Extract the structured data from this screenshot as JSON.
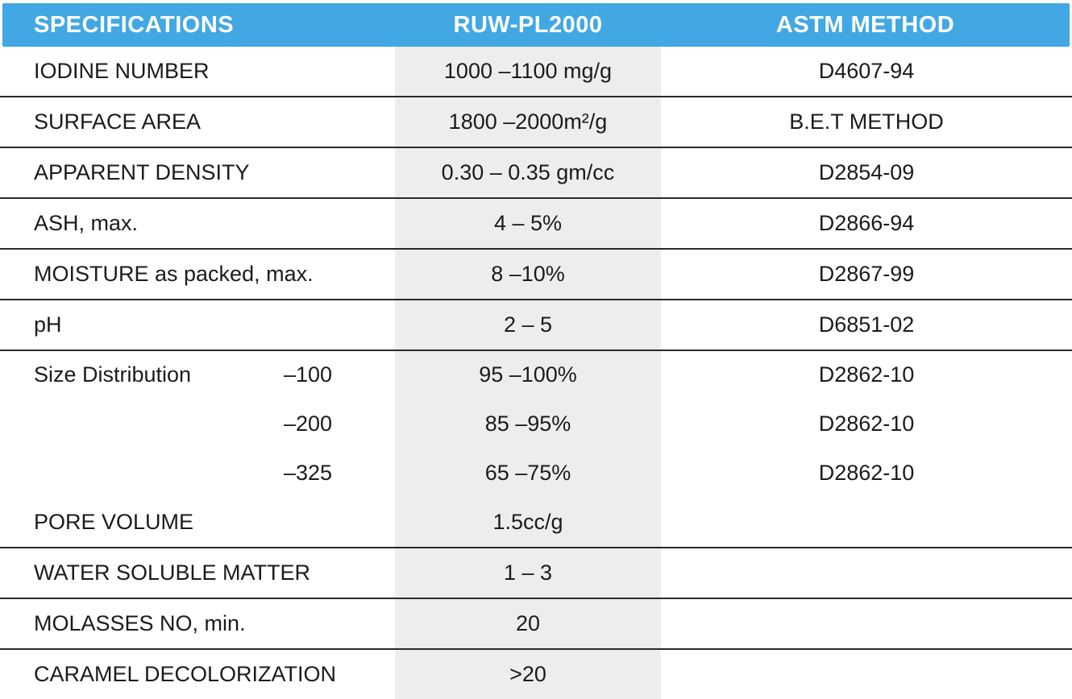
{
  "table_title": "Activated carbon product specification table",
  "header": {
    "col_spec": "SPECIFICATIONS",
    "col_value": "RUW-PL2000",
    "col_method": "ASTM METHOD"
  },
  "rows": [
    {
      "spec": "IODINE NUMBER",
      "size": "",
      "value": "1000 –1100 mg/g",
      "method": "D4607-94"
    },
    {
      "spec": "SURFACE AREA",
      "size": "",
      "value": "1800 –2000m²/g",
      "method": "B.E.T METHOD"
    },
    {
      "spec": "APPARENT DENSITY",
      "size": "",
      "value": "0.30 – 0.35 gm/cc",
      "method": "D2854-09"
    },
    {
      "spec": "ASH, max.",
      "size": "",
      "value": "4 – 5%",
      "method": "D2866-94"
    },
    {
      "spec": "MOISTURE as packed, max.",
      "size": "",
      "value": "8 –10%",
      "method": "D2867-99"
    },
    {
      "spec": "pH",
      "size": "",
      "value": "2 – 5",
      "method": "D6851-02"
    },
    {
      "spec": "Size Distribution",
      "size": "–100",
      "value": "95 –100%",
      "method": "D2862-10"
    },
    {
      "spec": "",
      "size": "–200",
      "value": "85 –95%",
      "method": "D2862-10"
    },
    {
      "spec": "",
      "size": "–325",
      "value": "65 –75%",
      "method": "D2862-10"
    },
    {
      "spec": "PORE VOLUME",
      "size": "",
      "value": "1.5cc/g",
      "method": ""
    },
    {
      "spec": "WATER SOLUBLE MATTER",
      "size": "",
      "value": "1 – 3",
      "method": ""
    },
    {
      "spec": "MOLASSES NO, min.",
      "size": "",
      "value": "20",
      "method": ""
    },
    {
      "spec": "CARAMEL DECOLORIZATION",
      "size": "",
      "value": ">20",
      "method": ""
    }
  ],
  "colors": {
    "header_bg": "#42a8e4",
    "header_text": "#ffffff",
    "value_col_bg": "#ededed",
    "divider": "#2a2a2a",
    "body_text": "#1b1b1b"
  }
}
